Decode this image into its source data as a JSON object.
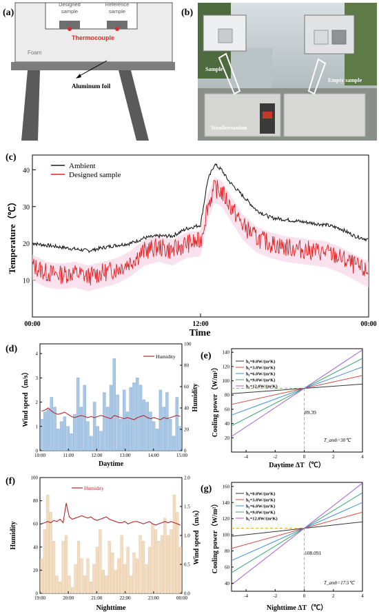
{
  "panel_labels": {
    "a": "(a)",
    "b": "(b)",
    "c": "(c)",
    "d": "(d)",
    "e": "(e)",
    "f": "(f)",
    "g": "(g)"
  },
  "schematic": {
    "designed_sample": [
      "Designed",
      "sample"
    ],
    "reference_sample": [
      "Reference",
      "sample"
    ],
    "thermocouple": "Thermocouple",
    "foam": "Foam",
    "aluminum_foil": "Aluminum foil",
    "colors": {
      "box": "#ededed",
      "legs": "#5a5a5a",
      "foil": "#7d7d7d",
      "samples": "#6e6e6e",
      "thermocouple": "#d62b2b"
    }
  },
  "photo": {
    "sample": "Sample",
    "empty_sample": "Empty sample",
    "weatherstation": "Weatherstation"
  },
  "chart_data": [
    {
      "id": "c",
      "type": "line",
      "title": "",
      "xlabel": "Time",
      "ylabel": "Temperature（℃）",
      "x_ticks": [
        "00:00",
        "12:00",
        "00:00"
      ],
      "y_ticks": [
        10,
        20,
        30,
        40
      ],
      "ylim": [
        0,
        44
      ],
      "legend_position": "top-left",
      "series": [
        {
          "name": "Ambient",
          "color": "#1a1a1a",
          "x_hours": [
            0,
            1,
            2,
            3,
            4,
            5,
            6,
            7,
            8,
            9,
            10,
            11,
            12,
            12.5,
            13,
            13.5,
            14,
            15,
            16,
            17,
            18,
            19,
            20,
            21,
            22,
            23,
            24
          ],
          "values": [
            20,
            19.5,
            19,
            18.5,
            18,
            18.8,
            19.5,
            20,
            21.5,
            22,
            22,
            24,
            25,
            37,
            41.5,
            40,
            37,
            33,
            29,
            27,
            26.5,
            26,
            25.5,
            25,
            24,
            22,
            21
          ]
        },
        {
          "name": "Designed sample",
          "color": "#e02020",
          "x_hours": [
            0,
            1,
            2,
            3,
            4,
            5,
            6,
            7,
            8,
            9,
            10,
            11,
            12,
            12.5,
            13,
            13.5,
            14,
            15,
            16,
            17,
            18,
            19,
            20,
            21,
            22,
            23,
            24
          ],
          "values": [
            14,
            12,
            11.5,
            12,
            11,
            12,
            13,
            15,
            18,
            19,
            18,
            20,
            20.5,
            30,
            35,
            34,
            31,
            25,
            21.5,
            20,
            19,
            18.5,
            18,
            17.5,
            16,
            14,
            12
          ]
        }
      ]
    },
    {
      "id": "d",
      "type": "bar",
      "xlabel": "Daytime",
      "ylabel_left": "Wind speed（m/s）",
      "ylabel_right": "Humidity",
      "x_ticks": [
        "10:00",
        "11:00",
        "12:00",
        "13:00",
        "14:00",
        "15:00"
      ],
      "y_left_ticks": [
        0,
        1,
        2,
        3,
        4
      ],
      "y_right_ticks": [
        0,
        20,
        40,
        60,
        80,
        100
      ],
      "ylim_left": [
        0,
        4.4
      ],
      "ylim_right": [
        0,
        100
      ],
      "legend": [
        "Humidity"
      ],
      "bar_color": "#a9c8e5",
      "line_color": "#b52626",
      "wind_speed": [
        1.3,
        1.6,
        1.7,
        2.2,
        1.8,
        0.9,
        1.2,
        1.4,
        1.0,
        0.7,
        1.5,
        3.0,
        1.8,
        2.7,
        1.2,
        0.6,
        2.0,
        1.0,
        0.8,
        2.4,
        1.8,
        2.7,
        3.8,
        2.3,
        1.3,
        2.5,
        1.6,
        2.6,
        2.8,
        3.0,
        2.7,
        2.1,
        2.0,
        1.6,
        1.2,
        0.9,
        2.5,
        1.8,
        2.4,
        1.3,
        0.6,
        2.2,
        1.0
      ],
      "humidity": [
        37,
        38,
        40,
        37,
        35,
        34,
        35,
        36,
        34,
        32,
        31,
        32,
        33,
        32,
        31,
        32,
        31,
        32,
        33,
        32,
        31,
        30,
        33,
        32,
        31,
        30,
        31,
        30,
        29,
        31,
        32,
        33,
        31,
        30,
        31,
        30,
        29,
        31,
        30,
        31,
        32,
        33,
        32
      ]
    },
    {
      "id": "e",
      "type": "line",
      "xlabel": "Daytime ΔT（℃）",
      "ylabel": "Cooling power（W/m²）",
      "x_ticks": [
        -4,
        -2,
        0,
        2,
        4
      ],
      "y_ticks": [
        20,
        40,
        60,
        80,
        100,
        120,
        140
      ],
      "xlim": [
        -5,
        4
      ],
      "ylim": [
        0,
        145
      ],
      "annotation": "89.39",
      "intersection": {
        "x": 0,
        "y": 89.39
      },
      "note": "T_amb=30℃",
      "series": [
        {
          "name": "h₁=0.0W/(m²K)",
          "color": "#333333",
          "slope": 1.5
        },
        {
          "name": "h₁=3.0W/(m²K)",
          "color": "#d24a3c",
          "slope": 4.5
        },
        {
          "name": "h₁=6.0W/(m²K)",
          "color": "#3b8fe0",
          "slope": 7.5
        },
        {
          "name": "h₁=9.0W/(m²K)",
          "color": "#2ea46b",
          "slope": 10.5
        },
        {
          "name": "h₁=12.0W/(m²K)",
          "color": "#a35cd9",
          "slope": 13.5
        }
      ]
    },
    {
      "id": "f",
      "type": "bar",
      "xlabel": "Nighttime",
      "ylabel_left": "Humidity",
      "ylabel_right": "Wind speed（m/s）",
      "x_ticks": [
        "19:00",
        "20:00",
        "21:00",
        "22:00",
        "23:00",
        "00:00"
      ],
      "y_left_ticks": [
        0,
        20,
        40,
        60,
        80,
        100
      ],
      "y_right_ticks": [
        0.0,
        0.5,
        1.0,
        1.5,
        2.0
      ],
      "ylim_left": [
        0,
        100
      ],
      "ylim_right": [
        0,
        2.0
      ],
      "legend": [
        "Humidity"
      ],
      "bar_color": "#f3dcc0",
      "line_color": "#b52626",
      "wind_speed": [
        0.6,
        1.1,
        1.7,
        1.4,
        0.9,
        0.3,
        0.2,
        0.9,
        1.0,
        0.3,
        0.1,
        0.5,
        0.9,
        0.6,
        0.3,
        0.6,
        0.2,
        0.5,
        0.8,
        1.1,
        0.4,
        0.3,
        0.9,
        0.7,
        0.4,
        0.6,
        1.0,
        0.5,
        0.8,
        0.3,
        0.7,
        0.6,
        1.0,
        0.9,
        0.5,
        0.8,
        1.2,
        1.1,
        0.9,
        1.0,
        1.3,
        1.0,
        1.1,
        1.7,
        1.4,
        0.8
      ],
      "humidity": [
        60,
        61,
        62,
        61,
        63,
        62,
        64,
        61,
        78,
        66,
        64,
        65,
        66,
        67,
        66,
        65,
        66,
        64,
        63,
        64,
        65,
        66,
        64,
        63,
        62,
        61,
        61,
        62,
        60,
        61,
        62,
        62,
        61,
        60,
        61,
        62,
        60,
        59,
        60,
        61,
        62,
        61,
        62,
        61,
        60,
        59
      ]
    },
    {
      "id": "g",
      "type": "line",
      "xlabel": "Nighttime ΔT（℃）",
      "ylabel": "Cooling power（W/m²）",
      "x_ticks": [
        -4,
        -2,
        0,
        2,
        4
      ],
      "y_ticks": [
        40,
        60,
        80,
        100,
        120,
        140,
        160
      ],
      "xlim": [
        -5,
        4
      ],
      "ylim": [
        30,
        165
      ],
      "annotation": "108.091",
      "intersection": {
        "x": 0,
        "y": 108.091
      },
      "note": "T_amb=17.5℃",
      "series": [
        {
          "name": "h₁=0.0W/(m²K)",
          "color": "#333333",
          "slope": 2.0
        },
        {
          "name": "h₁=3.0W/(m²K)",
          "color": "#d24a3c",
          "slope": 5.0
        },
        {
          "name": "h₁=6.0W/(m²K)",
          "color": "#3b8fe0",
          "slope": 8.0
        },
        {
          "name": "h₁=9.0W/(m²K)",
          "color": "#2ea46b",
          "slope": 11.0
        },
        {
          "name": "h₁=12.0W/(m²K)",
          "color": "#a35cd9",
          "slope": 14.0
        }
      ]
    }
  ]
}
